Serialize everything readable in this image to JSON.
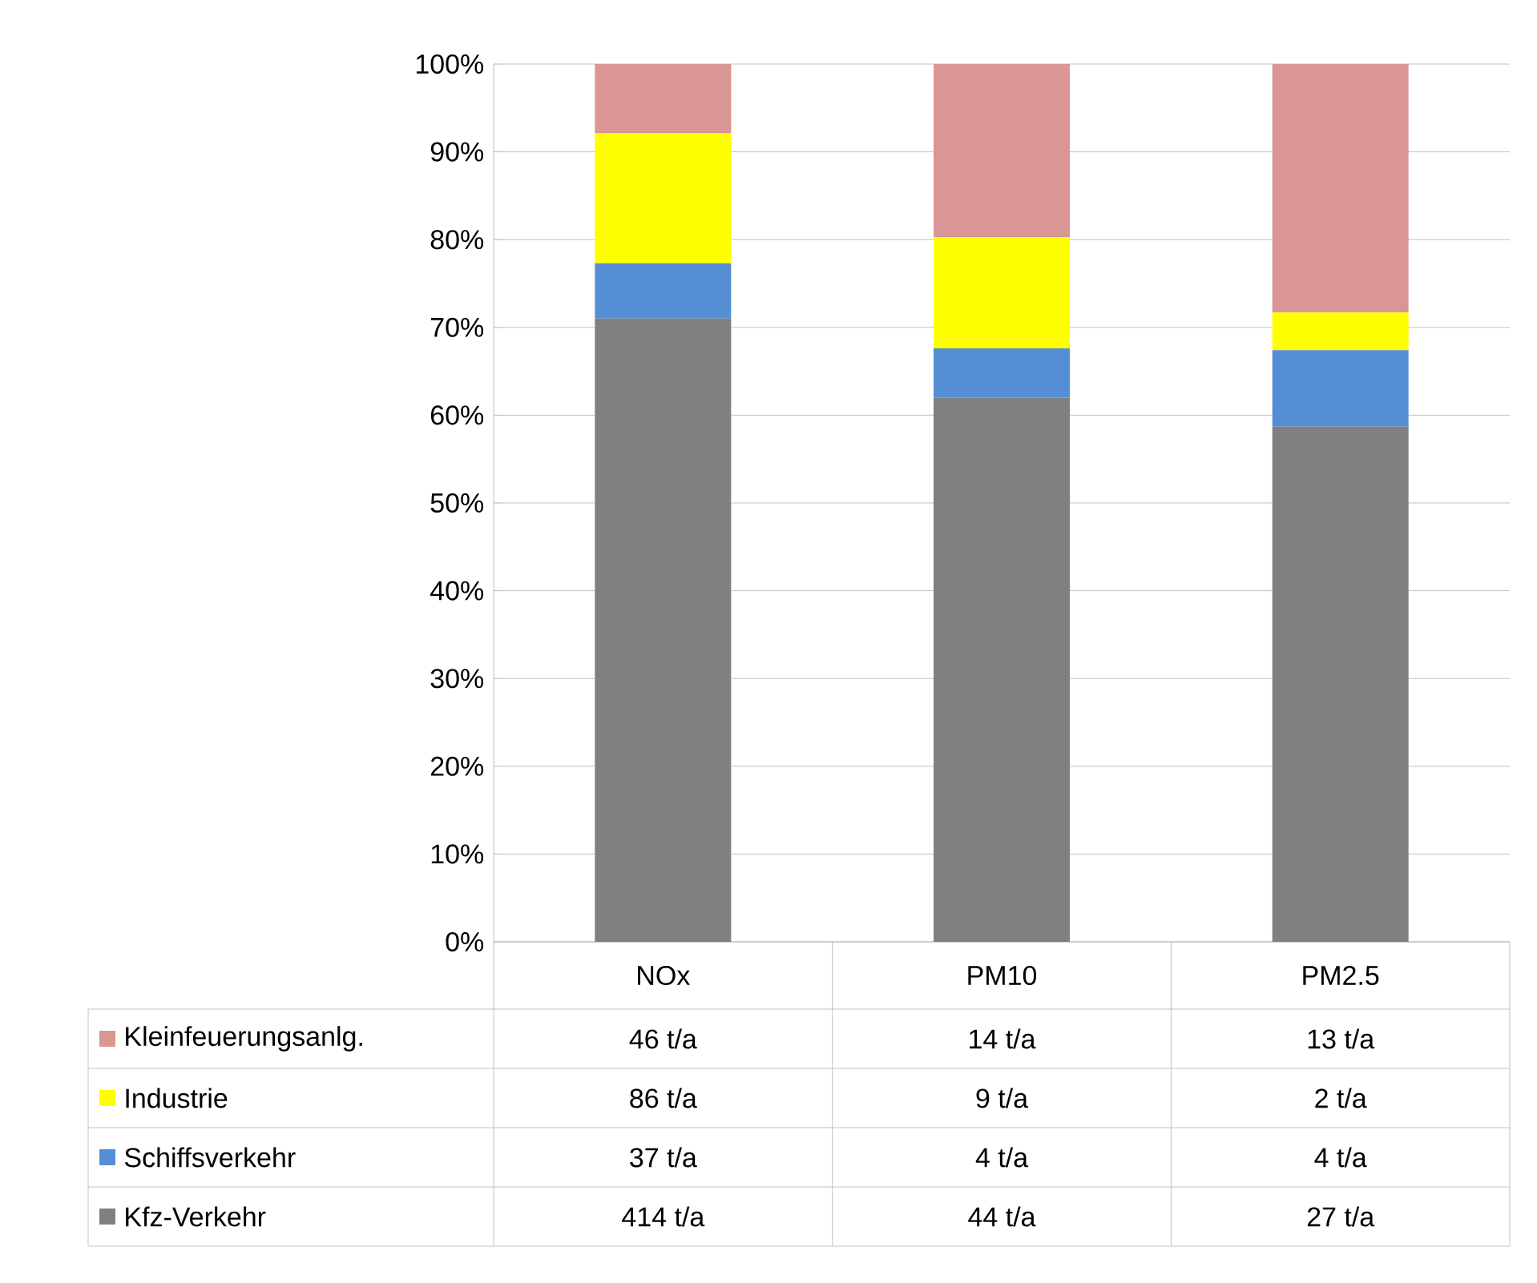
{
  "chart_data": {
    "type": "bar",
    "stacked": true,
    "categories": [
      "NOx",
      "PM10",
      "PM2.5"
    ],
    "series": [
      {
        "name": "Kfz-Verkehr",
        "color": "#808080",
        "values": [
          71.0,
          62.0,
          58.7
        ]
      },
      {
        "name": "Schiffsverkehr",
        "color": "#558ed5",
        "values": [
          6.3,
          5.6,
          8.7
        ]
      },
      {
        "name": "Industrie",
        "color": "#ffff00",
        "values": [
          14.8,
          12.7,
          4.3
        ]
      },
      {
        "name": "Kleinfeuerungsanlg.",
        "color": "#d99694",
        "values": [
          7.9,
          19.7,
          28.3
        ]
      }
    ],
    "annotations": [
      "414 t/a",
      "44 t/a",
      "27 t/a",
      "37 t/a",
      "4 t/a",
      "4 t/a",
      "86 t/a",
      "9 t/a",
      "2 t/a",
      "46 t/a",
      "14 t/a",
      "13 t/a"
    ],
    "ylim": [
      0,
      100
    ],
    "yticks": [
      {
        "value": 0,
        "label": "0%"
      },
      {
        "value": 10,
        "label": "10%"
      },
      {
        "value": 20,
        "label": "20%"
      },
      {
        "value": 30,
        "label": "30%"
      },
      {
        "value": 40,
        "label": "40%"
      },
      {
        "value": 50,
        "label": "50%"
      },
      {
        "value": 60,
        "label": "60%"
      },
      {
        "value": 70,
        "label": "70%"
      },
      {
        "value": 80,
        "label": "80%"
      },
      {
        "value": 90,
        "label": "90%"
      },
      {
        "value": 100,
        "label": "100%"
      }
    ],
    "grid": "y",
    "legend": "bottom left"
  }
}
